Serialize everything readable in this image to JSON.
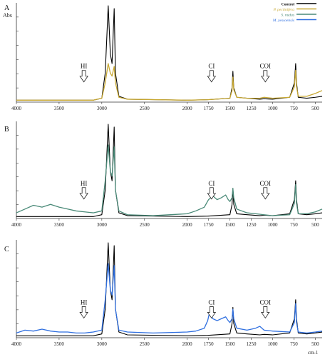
{
  "figure": {
    "y_axis_label": "Abs",
    "x_unit_label": "cm-1",
    "legend": [
      {
        "label": "Control",
        "color": "#000000"
      },
      {
        "label": "P. pectinifera",
        "color": "#c8a832"
      },
      {
        "label": "S. nudus",
        "color": "#4a8a78"
      },
      {
        "label": "M. yessoensis",
        "color": "#2f6fe0"
      }
    ]
  },
  "chart_data": [
    {
      "type": "line",
      "panel_letter": "A",
      "xlim": [
        4000,
        420
      ],
      "x_reversed": true,
      "x_ticks": [
        4000,
        3500,
        3000,
        2500,
        2000,
        1750,
        1500,
        1250,
        1000,
        750,
        500
      ],
      "ylim": [
        0,
        1
      ],
      "annotations": [
        {
          "label": "HI",
          "x": 3210
        },
        {
          "label": "CI",
          "x": 1715
        },
        {
          "label": "COI",
          "x": 1085
        }
      ],
      "series": [
        {
          "name": "Control",
          "color": "#000000",
          "points": [
            [
              4000,
              0.02
            ],
            [
              3500,
              0.02
            ],
            [
              3100,
              0.02
            ],
            [
              3000,
              0.04
            ],
            [
              2960,
              0.3
            ],
            [
              2925,
              1.0
            ],
            [
              2900,
              0.5
            ],
            [
              2880,
              0.4
            ],
            [
              2855,
              0.97
            ],
            [
              2840,
              0.3
            ],
            [
              2800,
              0.06
            ],
            [
              2700,
              0.03
            ],
            [
              2000,
              0.02
            ],
            [
              1760,
              0.025
            ],
            [
              1500,
              0.04
            ],
            [
              1475,
              0.15
            ],
            [
              1465,
              0.32
            ],
            [
              1455,
              0.15
            ],
            [
              1420,
              0.05
            ],
            [
              1300,
              0.04
            ],
            [
              1150,
              0.03
            ],
            [
              1100,
              0.035
            ],
            [
              1000,
              0.03
            ],
            [
              800,
              0.05
            ],
            [
              745,
              0.2
            ],
            [
              730,
              0.4
            ],
            [
              720,
              0.2
            ],
            [
              700,
              0.05
            ],
            [
              600,
              0.04
            ],
            [
              500,
              0.05
            ],
            [
              420,
              0.06
            ]
          ]
        },
        {
          "name": "P. pectinifera",
          "color": "#c8a832",
          "points": [
            [
              4000,
              0.02
            ],
            [
              3500,
              0.02
            ],
            [
              3100,
              0.02
            ],
            [
              3000,
              0.04
            ],
            [
              2960,
              0.2
            ],
            [
              2925,
              0.4
            ],
            [
              2900,
              0.3
            ],
            [
              2880,
              0.27
            ],
            [
              2855,
              0.37
            ],
            [
              2840,
              0.2
            ],
            [
              2800,
              0.05
            ],
            [
              2700,
              0.03
            ],
            [
              2000,
              0.02
            ],
            [
              1760,
              0.025
            ],
            [
              1500,
              0.04
            ],
            [
              1475,
              0.12
            ],
            [
              1465,
              0.26
            ],
            [
              1455,
              0.13
            ],
            [
              1420,
              0.05
            ],
            [
              1300,
              0.04
            ],
            [
              1150,
              0.04
            ],
            [
              1100,
              0.05
            ],
            [
              1000,
              0.04
            ],
            [
              800,
              0.05
            ],
            [
              745,
              0.16
            ],
            [
              730,
              0.33
            ],
            [
              720,
              0.16
            ],
            [
              700,
              0.06
            ],
            [
              600,
              0.06
            ],
            [
              500,
              0.09
            ],
            [
              420,
              0.12
            ]
          ]
        }
      ]
    },
    {
      "type": "line",
      "panel_letter": "B",
      "xlim": [
        4000,
        420
      ],
      "x_reversed": true,
      "x_ticks": [
        4000,
        3500,
        3000,
        2500,
        2000,
        1750,
        1500,
        1250,
        1000,
        750,
        500
      ],
      "ylim": [
        0,
        1
      ],
      "annotations": [
        {
          "label": "HI",
          "x": 3210
        },
        {
          "label": "CI",
          "x": 1715
        },
        {
          "label": "COI",
          "x": 1085
        }
      ],
      "series": [
        {
          "name": "Control",
          "color": "#000000",
          "points": [
            [
              4000,
              0.02
            ],
            [
              3500,
              0.02
            ],
            [
              3100,
              0.02
            ],
            [
              3000,
              0.04
            ],
            [
              2960,
              0.3
            ],
            [
              2925,
              1.0
            ],
            [
              2900,
              0.5
            ],
            [
              2880,
              0.4
            ],
            [
              2855,
              0.97
            ],
            [
              2840,
              0.3
            ],
            [
              2800,
              0.06
            ],
            [
              2700,
              0.03
            ],
            [
              2000,
              0.02
            ],
            [
              1760,
              0.025
            ],
            [
              1500,
              0.04
            ],
            [
              1475,
              0.15
            ],
            [
              1465,
              0.32
            ],
            [
              1455,
              0.15
            ],
            [
              1420,
              0.05
            ],
            [
              1300,
              0.04
            ],
            [
              1150,
              0.03
            ],
            [
              1100,
              0.035
            ],
            [
              1000,
              0.03
            ],
            [
              800,
              0.05
            ],
            [
              745,
              0.2
            ],
            [
              730,
              0.4
            ],
            [
              720,
              0.2
            ],
            [
              700,
              0.05
            ],
            [
              600,
              0.04
            ],
            [
              500,
              0.05
            ],
            [
              420,
              0.06
            ]
          ]
        },
        {
          "name": "S. nudus",
          "color": "#4a8a78",
          "points": [
            [
              4000,
              0.06
            ],
            [
              3900,
              0.1
            ],
            [
              3800,
              0.14
            ],
            [
              3700,
              0.12
            ],
            [
              3600,
              0.15
            ],
            [
              3500,
              0.12
            ],
            [
              3400,
              0.1
            ],
            [
              3300,
              0.08
            ],
            [
              3200,
              0.07
            ],
            [
              3100,
              0.06
            ],
            [
              3000,
              0.08
            ],
            [
              2960,
              0.4
            ],
            [
              2925,
              0.78
            ],
            [
              2900,
              0.5
            ],
            [
              2880,
              0.45
            ],
            [
              2855,
              0.76
            ],
            [
              2840,
              0.3
            ],
            [
              2800,
              0.08
            ],
            [
              2700,
              0.04
            ],
            [
              2400,
              0.03
            ],
            [
              2000,
              0.05
            ],
            [
              1900,
              0.08
            ],
            [
              1800,
              0.12
            ],
            [
              1750,
              0.2
            ],
            [
              1700,
              0.24
            ],
            [
              1650,
              0.2
            ],
            [
              1600,
              0.22
            ],
            [
              1550,
              0.25
            ],
            [
              1520,
              0.2
            ],
            [
              1500,
              0.18
            ],
            [
              1475,
              0.22
            ],
            [
              1465,
              0.32
            ],
            [
              1455,
              0.22
            ],
            [
              1420,
              0.1
            ],
            [
              1300,
              0.06
            ],
            [
              1200,
              0.05
            ],
            [
              1100,
              0.04
            ],
            [
              1000,
              0.03
            ],
            [
              800,
              0.04
            ],
            [
              745,
              0.16
            ],
            [
              730,
              0.36
            ],
            [
              720,
              0.16
            ],
            [
              700,
              0.05
            ],
            [
              600,
              0.05
            ],
            [
              500,
              0.07
            ],
            [
              420,
              0.1
            ]
          ]
        }
      ]
    },
    {
      "type": "line",
      "panel_letter": "C",
      "xlim": [
        4000,
        420
      ],
      "x_reversed": true,
      "x_ticks": [
        4000,
        3500,
        3000,
        2500,
        2000,
        1750,
        1500,
        1250,
        1000,
        750,
        500
      ],
      "ylim": [
        0,
        1
      ],
      "annotations": [
        {
          "label": "HI",
          "x": 3210
        },
        {
          "label": "CI",
          "x": 1715
        },
        {
          "label": "COI",
          "x": 1085
        }
      ],
      "series": [
        {
          "name": "Control",
          "color": "#000000",
          "points": [
            [
              4000,
              0.02
            ],
            [
              3500,
              0.02
            ],
            [
              3100,
              0.02
            ],
            [
              3000,
              0.04
            ],
            [
              2960,
              0.3
            ],
            [
              2925,
              1.0
            ],
            [
              2900,
              0.5
            ],
            [
              2880,
              0.4
            ],
            [
              2855,
              0.97
            ],
            [
              2840,
              0.3
            ],
            [
              2800,
              0.06
            ],
            [
              2700,
              0.03
            ],
            [
              2000,
              0.02
            ],
            [
              1760,
              0.025
            ],
            [
              1500,
              0.04
            ],
            [
              1475,
              0.15
            ],
            [
              1465,
              0.32
            ],
            [
              1455,
              0.15
            ],
            [
              1420,
              0.05
            ],
            [
              1300,
              0.04
            ],
            [
              1150,
              0.03
            ],
            [
              1100,
              0.035
            ],
            [
              1000,
              0.03
            ],
            [
              800,
              0.05
            ],
            [
              745,
              0.2
            ],
            [
              730,
              0.4
            ],
            [
              720,
              0.2
            ],
            [
              700,
              0.05
            ],
            [
              600,
              0.04
            ],
            [
              500,
              0.05
            ],
            [
              420,
              0.06
            ]
          ]
        },
        {
          "name": "M. yessoensis",
          "color": "#2f6fe0",
          "points": [
            [
              4000,
              0.05
            ],
            [
              3900,
              0.08
            ],
            [
              3800,
              0.07
            ],
            [
              3700,
              0.09
            ],
            [
              3600,
              0.07
            ],
            [
              3500,
              0.06
            ],
            [
              3400,
              0.06
            ],
            [
              3300,
              0.05
            ],
            [
              3200,
              0.05
            ],
            [
              3100,
              0.06
            ],
            [
              3000,
              0.08
            ],
            [
              2960,
              0.4
            ],
            [
              2925,
              0.78
            ],
            [
              2900,
              0.5
            ],
            [
              2880,
              0.45
            ],
            [
              2855,
              0.76
            ],
            [
              2840,
              0.3
            ],
            [
              2800,
              0.08
            ],
            [
              2700,
              0.06
            ],
            [
              2400,
              0.05
            ],
            [
              2000,
              0.06
            ],
            [
              1900,
              0.07
            ],
            [
              1800,
              0.1
            ],
            [
              1760,
              0.18
            ],
            [
              1740,
              0.26
            ],
            [
              1720,
              0.24
            ],
            [
              1700,
              0.2
            ],
            [
              1650,
              0.18
            ],
            [
              1600,
              0.2
            ],
            [
              1550,
              0.22
            ],
            [
              1520,
              0.18
            ],
            [
              1500,
              0.16
            ],
            [
              1475,
              0.2
            ],
            [
              1465,
              0.3
            ],
            [
              1455,
              0.2
            ],
            [
              1420,
              0.1
            ],
            [
              1300,
              0.08
            ],
            [
              1200,
              0.1
            ],
            [
              1150,
              0.12
            ],
            [
              1100,
              0.08
            ],
            [
              1000,
              0.07
            ],
            [
              800,
              0.06
            ],
            [
              745,
              0.16
            ],
            [
              730,
              0.36
            ],
            [
              720,
              0.16
            ],
            [
              700,
              0.06
            ],
            [
              600,
              0.05
            ],
            [
              500,
              0.06
            ],
            [
              420,
              0.07
            ]
          ]
        }
      ]
    }
  ]
}
